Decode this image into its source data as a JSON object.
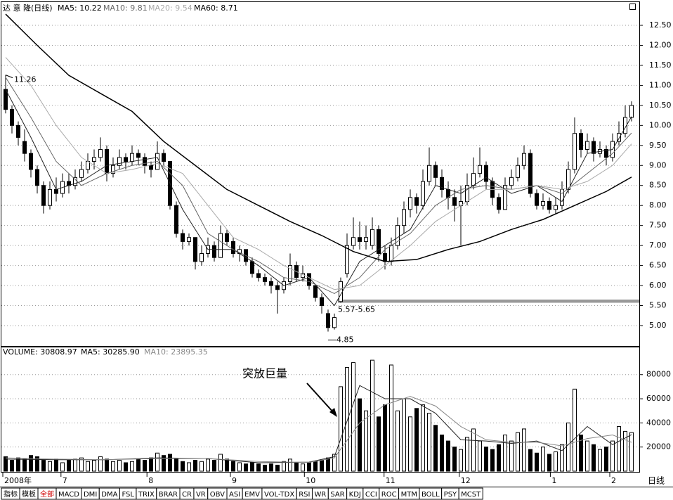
{
  "chart_data": {
    "type": "candlestick",
    "header": {
      "stock": "达 意 隆(日线)",
      "ma5": "MA5: 10.22",
      "ma10": "MA10: 9.81",
      "ma20": "MA20: 9.54",
      "ma60": "MA60: 8.71"
    },
    "volume_header": {
      "volume": "VOLUME: 30808.97",
      "ma5": "MA5: 30285.90",
      "ma10": "MA10: 23895.35"
    },
    "ohlc": [
      [
        10.9,
        11.26,
        10.3,
        10.4
      ],
      [
        10.4,
        10.5,
        9.8,
        10.0
      ],
      [
        10.0,
        10.1,
        9.5,
        9.7
      ],
      [
        9.6,
        9.9,
        9.1,
        9.3
      ],
      [
        9.3,
        9.4,
        8.7,
        8.9
      ],
      [
        8.9,
        9.0,
        8.3,
        8.5
      ],
      [
        8.5,
        8.6,
        7.8,
        8.0
      ],
      [
        8.0,
        8.6,
        7.9,
        8.4
      ],
      [
        8.4,
        8.7,
        8.1,
        8.3
      ],
      [
        8.3,
        8.8,
        8.2,
        8.6
      ],
      [
        8.6,
        8.8,
        8.3,
        8.5
      ],
      [
        8.5,
        8.9,
        8.4,
        8.7
      ],
      [
        8.7,
        9.1,
        8.6,
        8.9
      ],
      [
        8.9,
        9.3,
        8.8,
        9.1
      ],
      [
        9.1,
        9.4,
        8.9,
        9.2
      ],
      [
        9.2,
        9.7,
        9.1,
        9.4
      ],
      [
        9.4,
        9.5,
        8.6,
        8.8
      ],
      [
        8.8,
        9.2,
        8.7,
        9.0
      ],
      [
        9.0,
        9.4,
        8.9,
        9.2
      ],
      [
        9.2,
        9.3,
        8.9,
        9.1
      ],
      [
        9.1,
        9.5,
        9.0,
        9.3
      ],
      [
        9.3,
        9.4,
        9.0,
        9.2
      ],
      [
        9.2,
        9.3,
        8.8,
        9.0
      ],
      [
        9.0,
        9.1,
        8.7,
        8.9
      ],
      [
        8.9,
        9.6,
        8.9,
        9.3
      ],
      [
        9.3,
        9.4,
        9.0,
        9.1
      ],
      [
        9.1,
        9.1,
        7.9,
        8.0
      ],
      [
        8.0,
        8.1,
        7.2,
        7.3
      ],
      [
        7.3,
        7.4,
        6.9,
        7.1
      ],
      [
        7.1,
        7.3,
        7.0,
        7.2
      ],
      [
        7.2,
        7.2,
        6.4,
        6.6
      ],
      [
        6.6,
        7.0,
        6.5,
        6.8
      ],
      [
        6.8,
        7.2,
        6.7,
        7.0
      ],
      [
        7.0,
        7.1,
        6.6,
        6.7
      ],
      [
        6.7,
        7.5,
        6.7,
        7.3
      ],
      [
        7.3,
        7.4,
        7.0,
        7.1
      ],
      [
        7.1,
        7.2,
        6.7,
        6.8
      ],
      [
        6.8,
        7.0,
        6.6,
        6.9
      ],
      [
        6.9,
        6.9,
        6.5,
        6.6
      ],
      [
        6.6,
        6.7,
        6.2,
        6.3
      ],
      [
        6.3,
        6.4,
        6.1,
        6.2
      ],
      [
        6.2,
        6.3,
        6.0,
        6.1
      ],
      [
        6.1,
        6.2,
        5.8,
        6.0
      ],
      [
        6.0,
        6.1,
        5.3,
        5.9
      ],
      [
        5.9,
        6.2,
        5.8,
        6.1
      ],
      [
        6.1,
        6.8,
        6.0,
        6.5
      ],
      [
        6.5,
        6.6,
        6.1,
        6.2
      ],
      [
        6.2,
        6.5,
        6.1,
        6.3
      ],
      [
        6.3,
        6.3,
        5.9,
        6.0
      ],
      [
        6.0,
        6.0,
        5.6,
        5.7
      ],
      [
        5.7,
        5.8,
        5.3,
        5.5
      ],
      [
        5.3,
        5.4,
        4.85,
        4.95
      ],
      [
        4.95,
        5.3,
        4.9,
        5.2
      ],
      [
        5.6,
        6.2,
        5.57,
        6.1
      ],
      [
        6.3,
        7.3,
        6.2,
        7.0
      ],
      [
        7.0,
        7.7,
        6.9,
        7.2
      ],
      [
        7.2,
        7.6,
        6.9,
        7.1
      ],
      [
        7.1,
        7.5,
        6.9,
        7.2
      ],
      [
        7.0,
        7.7,
        6.9,
        7.4
      ],
      [
        7.4,
        7.5,
        6.6,
        6.8
      ],
      [
        6.8,
        7.0,
        6.4,
        6.6
      ],
      [
        6.6,
        7.2,
        6.5,
        7.0
      ],
      [
        7.0,
        7.7,
        6.9,
        7.5
      ],
      [
        7.5,
        8.1,
        7.3,
        7.9
      ],
      [
        7.9,
        8.4,
        7.7,
        8.2
      ],
      [
        8.2,
        8.3,
        7.8,
        8.0
      ],
      [
        8.0,
        8.9,
        7.9,
        8.6
      ],
      [
        8.6,
        9.45,
        8.5,
        9.0
      ],
      [
        9.0,
        9.1,
        8.5,
        8.7
      ],
      [
        8.7,
        8.9,
        8.2,
        8.4
      ],
      [
        8.4,
        8.6,
        7.9,
        8.2
      ],
      [
        8.2,
        8.4,
        7.6,
        8.0
      ],
      [
        8.0,
        8.5,
        7.0,
        8.1
      ],
      [
        8.1,
        8.8,
        8.0,
        8.5
      ],
      [
        8.5,
        9.2,
        8.4,
        8.8
      ],
      [
        8.8,
        9.45,
        8.7,
        9.0
      ],
      [
        9.0,
        9.1,
        8.4,
        8.6
      ],
      [
        8.6,
        8.7,
        8.0,
        8.2
      ],
      [
        8.2,
        8.3,
        7.8,
        7.9
      ],
      [
        7.9,
        8.7,
        7.9,
        8.5
      ],
      [
        8.5,
        8.9,
        8.4,
        8.7
      ],
      [
        8.7,
        9.2,
        8.6,
        9.0
      ],
      [
        9.0,
        9.5,
        8.9,
        9.3
      ],
      [
        9.3,
        9.4,
        8.2,
        8.3
      ],
      [
        8.3,
        8.4,
        7.9,
        8.0
      ],
      [
        8.0,
        8.3,
        7.9,
        8.1
      ],
      [
        8.1,
        8.2,
        7.8,
        7.9
      ],
      [
        7.9,
        8.2,
        7.8,
        8.0
      ],
      [
        8.0,
        8.6,
        7.9,
        8.4
      ],
      [
        8.4,
        9.1,
        8.3,
        8.9
      ],
      [
        8.9,
        10.2,
        8.8,
        9.8
      ],
      [
        9.8,
        9.9,
        9.2,
        9.4
      ],
      [
        9.4,
        9.8,
        9.3,
        9.6
      ],
      [
        9.6,
        9.7,
        9.1,
        9.3
      ],
      [
        9.3,
        9.6,
        9.2,
        9.4
      ],
      [
        9.4,
        9.5,
        9.0,
        9.2
      ],
      [
        9.2,
        9.8,
        9.1,
        9.6
      ],
      [
        9.6,
        10.1,
        9.5,
        9.8
      ],
      [
        9.8,
        10.5,
        9.7,
        10.2
      ],
      [
        10.2,
        10.6,
        10.1,
        10.5
      ]
    ],
    "volume": [
      12000,
      9000,
      11000,
      10000,
      13000,
      12000,
      9000,
      8000,
      10000,
      7000,
      9000,
      10000,
      11000,
      8000,
      9000,
      12000,
      10000,
      8000,
      9000,
      7000,
      8000,
      10000,
      9000,
      11000,
      15000,
      13000,
      14000,
      10000,
      8000,
      7000,
      9000,
      8000,
      10000,
      9000,
      14000,
      10000,
      8000,
      7000,
      6000,
      7000,
      6000,
      5000,
      6000,
      5000,
      8000,
      10000,
      7000,
      6000,
      7000,
      8000,
      9000,
      11000,
      14000,
      70000,
      86000,
      90000,
      60000,
      50000,
      92000,
      45000,
      55000,
      88000,
      50000,
      60000,
      45000,
      52000,
      55000,
      48000,
      38000,
      30000,
      25000,
      20000,
      18000,
      28000,
      35000,
      25000,
      20000,
      18000,
      22000,
      30000,
      25000,
      32000,
      35000,
      18000,
      15000,
      20000,
      14000,
      16000,
      22000,
      40000,
      68000,
      30000,
      25000,
      22000,
      18000,
      20000,
      25000,
      37000,
      33000,
      32000
    ],
    "ma_lines": [
      {
        "name": "MA5",
        "color": "#222222",
        "x": [
          0,
          4,
          8,
          12,
          16,
          20,
          24,
          28,
          32,
          36,
          40,
          44,
          48,
          52,
          56,
          60,
          64,
          68,
          72,
          76,
          80,
          84,
          88,
          92,
          96,
          99
        ],
        "values": [
          10.9,
          9.7,
          8.4,
          8.6,
          9.0,
          9.1,
          9.2,
          7.9,
          6.9,
          6.9,
          6.5,
          6.0,
          6.2,
          5.5,
          6.6,
          7.0,
          7.4,
          8.5,
          8.3,
          8.7,
          8.3,
          8.5,
          8.1,
          9.3,
          9.4,
          10.22
        ]
      },
      {
        "name": "MA10",
        "color": "#666666",
        "x": [
          0,
          4,
          8,
          12,
          16,
          20,
          24,
          28,
          32,
          36,
          40,
          44,
          48,
          52,
          56,
          60,
          64,
          68,
          72,
          76,
          80,
          84,
          88,
          92,
          96,
          99
        ],
        "values": [
          11.2,
          10.2,
          9.1,
          8.5,
          8.8,
          9.0,
          9.1,
          8.5,
          7.3,
          6.9,
          6.6,
          6.2,
          6.1,
          5.8,
          6.2,
          6.9,
          7.3,
          8.0,
          8.4,
          8.5,
          8.4,
          8.5,
          8.3,
          8.8,
          9.3,
          9.81
        ]
      },
      {
        "name": "MA20",
        "color": "#aaaaaa",
        "x": [
          0,
          4,
          8,
          12,
          16,
          20,
          24,
          28,
          32,
          36,
          40,
          44,
          48,
          52,
          56,
          60,
          64,
          68,
          72,
          76,
          80,
          84,
          88,
          92,
          96,
          99
        ],
        "values": [
          11.7,
          11.0,
          10.0,
          9.2,
          8.8,
          8.9,
          9.05,
          8.8,
          8.0,
          7.2,
          6.9,
          6.5,
          6.2,
          5.9,
          6.0,
          6.5,
          7.0,
          7.6,
          8.0,
          8.4,
          8.4,
          8.5,
          8.4,
          8.6,
          9.0,
          9.54
        ]
      },
      {
        "name": "MA60",
        "color": "#000000",
        "x": [
          0,
          5,
          10,
          15,
          20,
          25,
          30,
          35,
          40,
          45,
          50,
          55,
          60,
          65,
          70,
          75,
          80,
          85,
          90,
          95,
          99
        ],
        "values": [
          12.78,
          12.0,
          11.25,
          10.8,
          10.35,
          9.6,
          9.0,
          8.4,
          8.0,
          7.6,
          7.25,
          6.85,
          6.6,
          6.65,
          6.9,
          7.1,
          7.4,
          7.65,
          8.0,
          8.35,
          8.71
        ]
      }
    ],
    "volume_ma_lines": [
      {
        "name": "MA5",
        "color": "#222222",
        "x": [
          0,
          8,
          16,
          24,
          32,
          40,
          48,
          52,
          56,
          60,
          64,
          68,
          72,
          76,
          80,
          84,
          88,
          92,
          96,
          99
        ],
        "values": [
          10000,
          9500,
          9500,
          11000,
          10500,
          7000,
          7500,
          12000,
          71000,
          60000,
          60000,
          48000,
          26000,
          25000,
          23000,
          25000,
          17000,
          37000,
          22000,
          30285.9
        ]
      },
      {
        "name": "MA10",
        "color": "#888888",
        "x": [
          0,
          8,
          16,
          24,
          32,
          40,
          48,
          52,
          56,
          60,
          64,
          68,
          72,
          76,
          80,
          84,
          88,
          92,
          96,
          99
        ],
        "values": [
          11000,
          10000,
          9500,
          10500,
          10500,
          8000,
          7200,
          11000,
          40000,
          55000,
          62000,
          54000,
          37000,
          26000,
          24000,
          24000,
          21000,
          27000,
          30000,
          23895.35
        ]
      }
    ],
    "ylim": [
      4.49,
      13.08
    ],
    "yticks": [
      {
        "value": 5,
        "label": "5.00"
      },
      {
        "value": 5.5,
        "label": "5.50"
      },
      {
        "value": 6,
        "label": "6.00"
      },
      {
        "value": 6.5,
        "label": "6.50"
      },
      {
        "value": 7,
        "label": "7.00"
      },
      {
        "value": 7.5,
        "label": "7.50"
      },
      {
        "value": 8,
        "label": "8.00"
      },
      {
        "value": 8.5,
        "label": "8.50"
      },
      {
        "value": 9,
        "label": "9.00"
      },
      {
        "value": 9.5,
        "label": "9.50"
      },
      {
        "value": 10,
        "label": "10.00"
      },
      {
        "value": 10.5,
        "label": "10.50"
      },
      {
        "value": 11,
        "label": "11.00"
      },
      {
        "value": 11.5,
        "label": "11.50"
      },
      {
        "value": 12,
        "label": "12.00"
      },
      {
        "value": 12.5,
        "label": "12.50"
      }
    ],
    "vlim": [
      0,
      102000
    ],
    "vticks": [
      20000,
      40000,
      60000,
      80000
    ],
    "xticks": [
      {
        "value": 0,
        "label": "2008年"
      },
      {
        "value": 9.2,
        "label": "7"
      },
      {
        "value": 22.8,
        "label": "8"
      },
      {
        "value": 36,
        "label": "9"
      },
      {
        "value": 47.7,
        "label": "10"
      },
      {
        "value": 60.3,
        "label": "11"
      },
      {
        "value": 72.2,
        "label": "12"
      },
      {
        "value": 86.6,
        "label": "1"
      },
      {
        "value": 96,
        "label": "2"
      }
    ],
    "period": "日线",
    "grid": true,
    "annotations": {
      "high": {
        "text": "11.26",
        "at": 0
      },
      "low": {
        "text": "4.85",
        "at": 51
      },
      "band": {
        "text": "5.57-5.65",
        "range": [
          5.57,
          5.65
        ],
        "at": 53
      },
      "volume_note": "突放巨量"
    }
  },
  "toolbar": [
    "指标",
    "模板",
    "全部",
    "MACD",
    "DMI",
    "DMA",
    "FSL",
    "TRIX",
    "BRAR",
    "CR",
    "VR",
    "OBV",
    "ASI",
    "EMV",
    "VOL-TDX",
    "RSI",
    "WR",
    "SAR",
    "KDJ",
    "CCI",
    "ROC",
    "MTM",
    "BOLL",
    "PSY",
    "MCST"
  ]
}
